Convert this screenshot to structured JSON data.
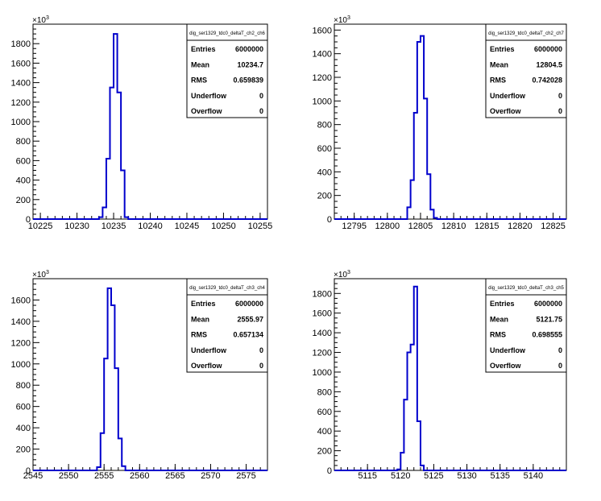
{
  "colors": {
    "histogram_line": "#0000cc",
    "axis": "#000000",
    "background": "#ffffff"
  },
  "chart_data": [
    {
      "type": "bar",
      "style": "step-histogram",
      "stats_title": "dig_ser1329_tdc0_deltaT_ch2_ch6",
      "y_multiplier_label": "×10",
      "y_multiplier_exp": "3",
      "xlim": [
        10224,
        10256
      ],
      "ylim": [
        0,
        2000
      ],
      "xticks": [
        "10225",
        "10230",
        "10235",
        "10240",
        "10245",
        "10250",
        "10255"
      ],
      "yticks": [
        "0",
        "200",
        "400",
        "600",
        "800",
        "1000",
        "1200",
        "1400",
        "1600",
        "1800"
      ],
      "bins": {
        "start": 10224,
        "width": 0.5
      },
      "values": [
        0,
        0,
        0,
        0,
        0,
        0,
        0,
        0,
        0,
        0,
        0,
        0,
        0,
        0,
        0,
        0,
        0,
        0,
        20,
        120,
        620,
        1350,
        1900,
        1300,
        500,
        20,
        0,
        0,
        0,
        0,
        0,
        0,
        0,
        0,
        0,
        0,
        0,
        0,
        0,
        0,
        0,
        0,
        0,
        0,
        0,
        0,
        0,
        0,
        0,
        0,
        0,
        0,
        0,
        0,
        0,
        0,
        0,
        0,
        0,
        0,
        0,
        0,
        0,
        0
      ],
      "stats": [
        {
          "key": "Entries",
          "value": "6000000"
        },
        {
          "key": "Mean",
          "value": "10234.7"
        },
        {
          "key": "RMS",
          "value": "0.659839"
        },
        {
          "key": "Underflow",
          "value": "0"
        },
        {
          "key": "Overflow",
          "value": "0"
        }
      ]
    },
    {
      "type": "bar",
      "style": "step-histogram",
      "stats_title": "dig_ser1329_tdc0_deltaT_ch2_ch7",
      "y_multiplier_label": "×10",
      "y_multiplier_exp": "3",
      "xlim": [
        12792,
        12827
      ],
      "ylim": [
        0,
        1650
      ],
      "xticks": [
        "12795",
        "12800",
        "12805",
        "12810",
        "12815",
        "12820",
        "12825"
      ],
      "yticks": [
        "0",
        "200",
        "400",
        "600",
        "800",
        "1000",
        "1200",
        "1400",
        "1600"
      ],
      "bins": {
        "start": 12792,
        "width": 0.5
      },
      "values": [
        0,
        0,
        0,
        0,
        0,
        0,
        0,
        0,
        0,
        0,
        0,
        0,
        0,
        0,
        0,
        0,
        0,
        0,
        0,
        0,
        0,
        0,
        100,
        330,
        900,
        1500,
        1550,
        1020,
        380,
        80,
        10,
        0,
        0,
        0,
        0,
        0,
        0,
        0,
        0,
        0,
        0,
        0,
        0,
        0,
        0,
        0,
        0,
        0,
        0,
        0,
        0,
        0,
        0,
        0,
        0,
        0,
        0,
        0,
        0,
        0,
        0,
        0,
        0,
        0,
        0,
        0,
        0,
        0,
        0,
        0
      ],
      "stats": [
        {
          "key": "Entries",
          "value": "6000000"
        },
        {
          "key": "Mean",
          "value": "12804.5"
        },
        {
          "key": "RMS",
          "value": "0.742028"
        },
        {
          "key": "Underflow",
          "value": "0"
        },
        {
          "key": "Overflow",
          "value": "0"
        }
      ]
    },
    {
      "type": "bar",
      "style": "step-histogram",
      "stats_title": "dig_ser1329_tdc0_deltaT_ch3_ch4",
      "y_multiplier_label": "×10",
      "y_multiplier_exp": "3",
      "xlim": [
        2545,
        2578
      ],
      "ylim": [
        0,
        1800
      ],
      "xticks": [
        "2545",
        "2550",
        "2555",
        "2560",
        "2565",
        "2570",
        "2575"
      ],
      "yticks": [
        "0",
        "200",
        "400",
        "600",
        "800",
        "1000",
        "1200",
        "1400",
        "1600"
      ],
      "bins": {
        "start": 2545,
        "width": 0.5
      },
      "values": [
        0,
        0,
        0,
        0,
        0,
        0,
        0,
        0,
        0,
        0,
        0,
        0,
        0,
        0,
        0,
        0,
        0,
        0,
        30,
        350,
        1050,
        1710,
        1550,
        960,
        300,
        40,
        0,
        0,
        0,
        0,
        0,
        0,
        0,
        0,
        0,
        0,
        0,
        0,
        0,
        0,
        0,
        0,
        0,
        0,
        0,
        0,
        0,
        0,
        0,
        0,
        0,
        0,
        0,
        0,
        0,
        0,
        0,
        0,
        0,
        0,
        0,
        0,
        0,
        0,
        0,
        0
      ],
      "stats": [
        {
          "key": "Entries",
          "value": "6000000"
        },
        {
          "key": "Mean",
          "value": "2555.97"
        },
        {
          "key": "RMS",
          "value": "0.657134"
        },
        {
          "key": "Underflow",
          "value": "0"
        },
        {
          "key": "Overflow",
          "value": "0"
        }
      ]
    },
    {
      "type": "bar",
      "style": "step-histogram",
      "stats_title": "dig_ser1329_tdc0_deltaT_ch3_ch5",
      "y_multiplier_label": "×10",
      "y_multiplier_exp": "3",
      "xlim": [
        5110,
        5145
      ],
      "ylim": [
        0,
        1950
      ],
      "xticks": [
        "5115",
        "5120",
        "5125",
        "5130",
        "5135",
        "5140"
      ],
      "yticks": [
        "0",
        "200",
        "400",
        "600",
        "800",
        "1000",
        "1200",
        "1400",
        "1600",
        "1800"
      ],
      "bins": {
        "start": 5110,
        "width": 0.5
      },
      "values": [
        0,
        0,
        0,
        0,
        0,
        0,
        0,
        0,
        0,
        0,
        0,
        0,
        0,
        0,
        0,
        0,
        0,
        0,
        0,
        10,
        180,
        720,
        1200,
        1280,
        1870,
        500,
        50,
        0,
        0,
        0,
        0,
        0,
        0,
        0,
        0,
        0,
        0,
        0,
        0,
        0,
        0,
        0,
        0,
        0,
        0,
        0,
        0,
        0,
        0,
        0,
        0,
        0,
        0,
        0,
        0,
        0,
        0,
        0,
        0,
        0,
        0,
        0,
        0,
        0,
        0,
        0,
        0,
        0,
        0,
        0
      ],
      "stats": [
        {
          "key": "Entries",
          "value": "6000000"
        },
        {
          "key": "Mean",
          "value": "5121.75"
        },
        {
          "key": "RMS",
          "value": "0.698555"
        },
        {
          "key": "Underflow",
          "value": "0"
        },
        {
          "key": "Overflow",
          "value": "0"
        }
      ]
    }
  ]
}
